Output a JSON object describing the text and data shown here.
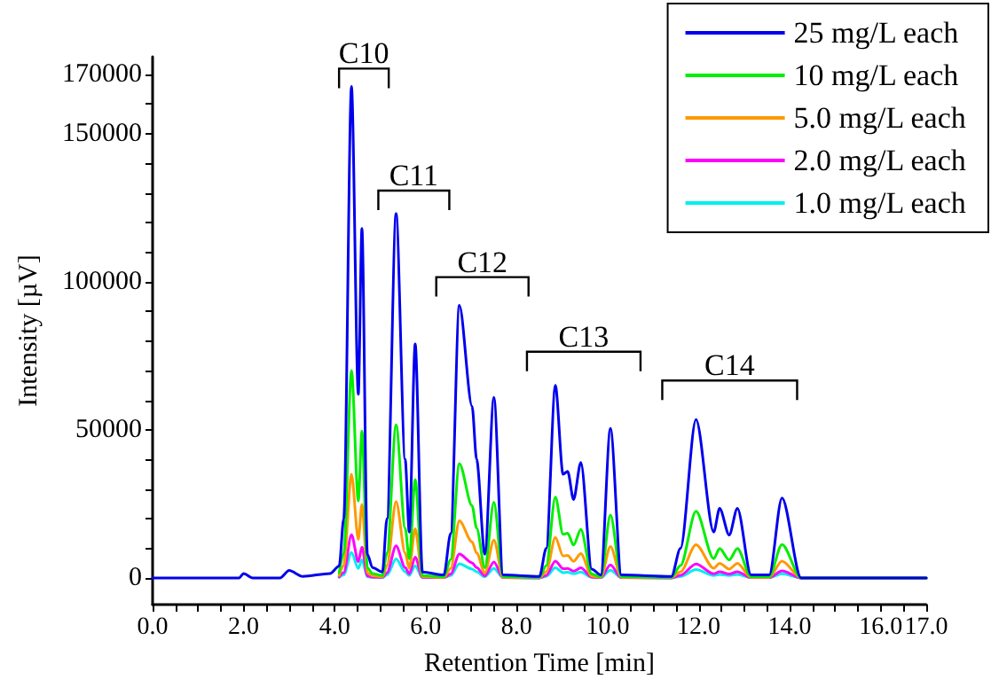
{
  "chart_data": {
    "type": "line",
    "xlabel": "Retention Time [min]",
    "ylabel": "Intensity [µV]",
    "x": [
      0,
      1.9,
      2.0,
      2.2,
      2.8,
      3.0,
      3.3,
      3.9,
      4.1,
      4.2,
      4.37,
      4.52,
      4.6,
      4.72,
      4.83,
      5.05,
      5.15,
      5.35,
      5.55,
      5.64,
      5.77,
      5.93,
      6.4,
      6.55,
      6.74,
      7.02,
      7.12,
      7.3,
      7.5,
      7.7,
      8.5,
      8.65,
      8.85,
      9.02,
      9.12,
      9.25,
      9.41,
      9.65,
      9.85,
      10.06,
      10.3,
      11.4,
      11.6,
      11.94,
      12.33,
      12.46,
      12.67,
      12.85,
      13.15,
      13.55,
      13.83,
      14.25,
      17.0
    ],
    "series": [
      {
        "name": "25 mg/L each",
        "color": "#0000ee",
        "values": [
          0,
          0,
          1500,
          0,
          0,
          2500,
          500,
          1500,
          4000,
          20000,
          166000,
          62000,
          118000,
          8000,
          3500,
          2000,
          20000,
          123000,
          40000,
          15500,
          79000,
          2000,
          1000,
          15000,
          92000,
          58000,
          40000,
          8000,
          61000,
          1000,
          500,
          10000,
          65000,
          35000,
          36000,
          26500,
          39000,
          3000,
          1000,
          50500,
          1000,
          500,
          10000,
          53500,
          15500,
          23500,
          14500,
          23500,
          1000,
          1000,
          27000,
          0,
          0
        ]
      },
      {
        "name": "10 mg/L each",
        "color": "#00ee00",
        "values": [
          null,
          null,
          null,
          null,
          null,
          null,
          null,
          null,
          1700,
          8400,
          70000,
          26000,
          49600,
          3400,
          1500,
          800,
          8400,
          51700,
          16800,
          6500,
          33200,
          800,
          400,
          6300,
          38600,
          24400,
          16800,
          3400,
          25600,
          400,
          200,
          4200,
          27300,
          14700,
          15100,
          11100,
          16400,
          1300,
          400,
          21200,
          400,
          200,
          4200,
          22500,
          6500,
          9900,
          6100,
          9900,
          400,
          400,
          11300,
          0,
          0
        ]
      },
      {
        "name": "5.0 mg/L each",
        "color": "#ff9900",
        "values": [
          null,
          null,
          null,
          null,
          null,
          null,
          null,
          null,
          800,
          4200,
          35000,
          13000,
          24800,
          1700,
          700,
          400,
          4200,
          25800,
          8400,
          3300,
          16600,
          400,
          200,
          3200,
          19300,
          12200,
          8400,
          1700,
          12800,
          200,
          100,
          2100,
          13700,
          7400,
          7600,
          5600,
          8200,
          600,
          200,
          10600,
          200,
          100,
          2100,
          11200,
          3300,
          4900,
          3000,
          4900,
          200,
          200,
          5700,
          0,
          0
        ]
      },
      {
        "name": "2.0 mg/L each",
        "color": "#ff00ff",
        "values": [
          null,
          null,
          null,
          null,
          null,
          null,
          null,
          null,
          400,
          1800,
          14600,
          5500,
          10400,
          700,
          300,
          200,
          1800,
          10800,
          3500,
          1400,
          7000,
          200,
          100,
          1300,
          8100,
          5100,
          3500,
          700,
          5400,
          100,
          0,
          900,
          5700,
          3100,
          3200,
          2300,
          3400,
          300,
          100,
          4400,
          100,
          0,
          900,
          4700,
          1400,
          2100,
          1300,
          2100,
          100,
          100,
          2400,
          0,
          0
        ]
      },
      {
        "name": "1.0 mg/L each",
        "color": "#00eeee",
        "values": [
          null,
          null,
          null,
          null,
          null,
          null,
          null,
          null,
          200,
          1000,
          8600,
          3200,
          6100,
          400,
          200,
          100,
          1000,
          6400,
          2100,
          800,
          4100,
          100,
          100,
          800,
          4800,
          3000,
          2100,
          400,
          3200,
          100,
          0,
          500,
          3400,
          1800,
          1900,
          1400,
          2000,
          200,
          100,
          2600,
          100,
          0,
          500,
          2800,
          800,
          1200,
          800,
          1200,
          100,
          100,
          1400,
          0,
          0
        ]
      }
    ],
    "xlim": [
      0,
      17
    ],
    "xticks": [
      {
        "value": 0,
        "label": "0.0"
      },
      {
        "value": 0.5,
        "label": null
      },
      {
        "value": 1,
        "label": null
      },
      {
        "value": 1.5,
        "label": null
      },
      {
        "value": 2,
        "label": "2.0"
      },
      {
        "value": 2.5,
        "label": null
      },
      {
        "value": 3,
        "label": null
      },
      {
        "value": 3.5,
        "label": null
      },
      {
        "value": 4,
        "label": "4.0"
      },
      {
        "value": 4.5,
        "label": null
      },
      {
        "value": 5,
        "label": null
      },
      {
        "value": 5.5,
        "label": null
      },
      {
        "value": 6,
        "label": "6.0"
      },
      {
        "value": 6.5,
        "label": null
      },
      {
        "value": 7,
        "label": null
      },
      {
        "value": 7.5,
        "label": null
      },
      {
        "value": 8,
        "label": "8.0"
      },
      {
        "value": 8.5,
        "label": null
      },
      {
        "value": 9,
        "label": null
      },
      {
        "value": 9.5,
        "label": null
      },
      {
        "value": 10,
        "label": "10.0"
      },
      {
        "value": 10.5,
        "label": null
      },
      {
        "value": 11,
        "label": null
      },
      {
        "value": 11.5,
        "label": null
      },
      {
        "value": 12,
        "label": "12.0"
      },
      {
        "value": 12.5,
        "label": null
      },
      {
        "value": 13,
        "label": null
      },
      {
        "value": 13.5,
        "label": null
      },
      {
        "value": 14,
        "label": "14.0"
      },
      {
        "value": 14.5,
        "label": null
      },
      {
        "value": 15,
        "label": null
      },
      {
        "value": 15.5,
        "label": null
      },
      {
        "value": 16,
        "label": "16.0"
      },
      {
        "value": 16.5,
        "label": null
      },
      {
        "value": 17,
        "label": "17.0"
      }
    ],
    "ylim": [
      -9000,
      176000
    ],
    "yticks": [
      0,
      {
        "value": 10000,
        "label": null
      },
      {
        "value": 20000,
        "label": null
      },
      {
        "value": 30000,
        "label": null
      },
      {
        "value": 40000,
        "label": null
      },
      50000,
      {
        "value": 60000,
        "label": null
      },
      {
        "value": 70000,
        "label": null
      },
      {
        "value": 80000,
        "label": null
      },
      {
        "value": 90000,
        "label": null
      },
      100000,
      {
        "value": 110000,
        "label": null
      },
      {
        "value": 120000,
        "label": null
      },
      {
        "value": 130000,
        "label": null
      },
      {
        "value": 140000,
        "label": null
      },
      150000,
      {
        "value": 160000,
        "label": null
      },
      170000
    ],
    "annotations": [
      {
        "text": "C10",
        "x": 4.37,
        "y": 166000
      },
      {
        "text": "C11",
        "x": 5.35,
        "y": 123000
      },
      {
        "text": "C12",
        "x": 6.74,
        "y": 92000
      },
      {
        "text": "C13",
        "x": 8.85,
        "y": 65000
      },
      {
        "text": "C14",
        "x": 11.94,
        "y": 53500
      }
    ],
    "grid": false,
    "legend": "top right",
    "marker": "none",
    "line_style": "solid"
  }
}
